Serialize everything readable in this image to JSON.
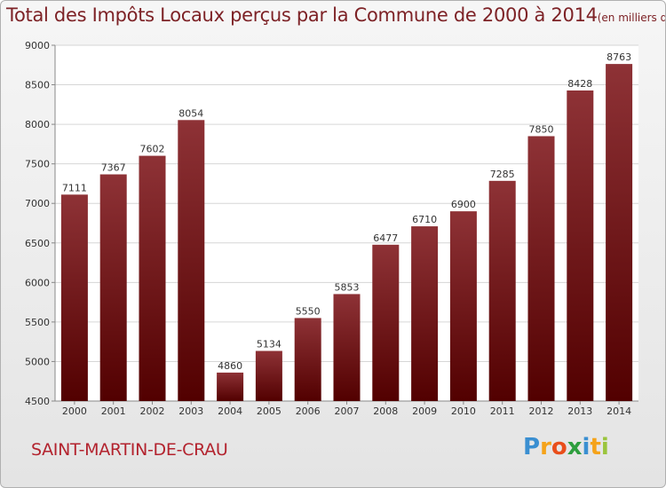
{
  "chart_data": {
    "type": "bar",
    "title": "Total des Impôts Locaux perçus par la Commune de 2000 à 2014",
    "title_unit": "(en milliers d'€)",
    "categories": [
      "2000",
      "2001",
      "2002",
      "2003",
      "2004",
      "2005",
      "2006",
      "2007",
      "2008",
      "2009",
      "2010",
      "2011",
      "2012",
      "2013",
      "2014"
    ],
    "values": [
      7111,
      7367,
      7602,
      8054,
      4860,
      5134,
      5550,
      5853,
      6477,
      6710,
      6900,
      7285,
      7850,
      8428,
      8763
    ],
    "ylim": [
      4500,
      9000
    ],
    "yticks": [
      4500,
      5000,
      5500,
      6000,
      6500,
      7000,
      7500,
      8000,
      8500,
      9000
    ],
    "grid": true,
    "bar_color": "#7a1f24",
    "data_labels": true
  },
  "commune": "SAINT-MARTIN-DE-CRAU",
  "logo": {
    "letters": [
      "P",
      "r",
      "o",
      "x",
      "i",
      "t",
      "i"
    ],
    "colors": [
      "#3a8fd1",
      "#f5a31a",
      "#e94e1b",
      "#2e9e3e",
      "#3a8fd1",
      "#f5a31a",
      "#9bc53d"
    ]
  }
}
